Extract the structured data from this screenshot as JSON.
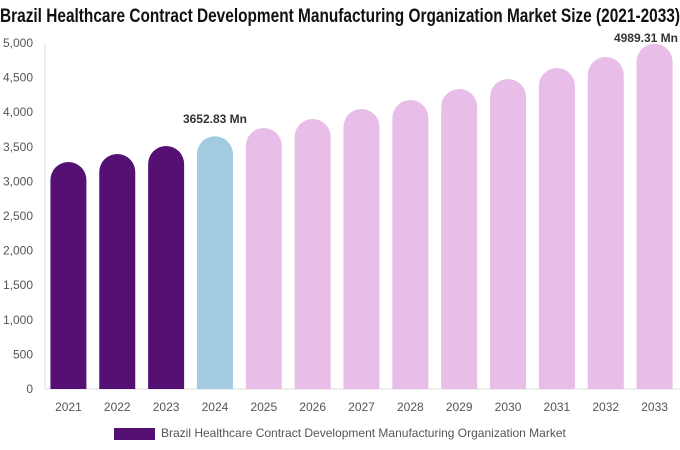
{
  "chart_data": {
    "type": "bar",
    "title": "Brazil Healthcare Contract Development Manufacturing Organization Market Size (2021-2033)",
    "categories": [
      "2021",
      "2022",
      "2023",
      "2024",
      "2025",
      "2026",
      "2027",
      "2028",
      "2029",
      "2030",
      "2031",
      "2032",
      "2033"
    ],
    "series": [
      {
        "name": "Brazil Healthcare Contract Development Manufacturing Organization Market",
        "values": [
          3280,
          3396,
          3511,
          3652.83,
          3772,
          3902,
          4046,
          4176,
          4335,
          4480,
          4639,
          4798,
          4989.31
        ]
      }
    ],
    "data_labels": [
      {
        "index": 3,
        "text": "3652.83 Mn"
      },
      {
        "index": 12,
        "text": "4989.31 Mn"
      }
    ],
    "ylim": [
      0,
      5000
    ],
    "yticks": [
      0,
      500,
      1000,
      1500,
      2000,
      2500,
      3000,
      3500,
      4000,
      4500,
      5000
    ],
    "ytick_labels": [
      "0",
      "500",
      "1,000",
      "1,500",
      "2,000",
      "2,500",
      "3,000",
      "3,500",
      "4,000",
      "4,500",
      "5,000"
    ],
    "grid": false,
    "legend_position": "bottom",
    "colors": {
      "historical": "#541173",
      "current": "#a3cbe0",
      "forecast": "#e8bde8"
    },
    "bar_color_groups": [
      "historical",
      "historical",
      "historical",
      "current",
      "forecast",
      "forecast",
      "forecast",
      "forecast",
      "forecast",
      "forecast",
      "forecast",
      "forecast",
      "forecast"
    ]
  }
}
